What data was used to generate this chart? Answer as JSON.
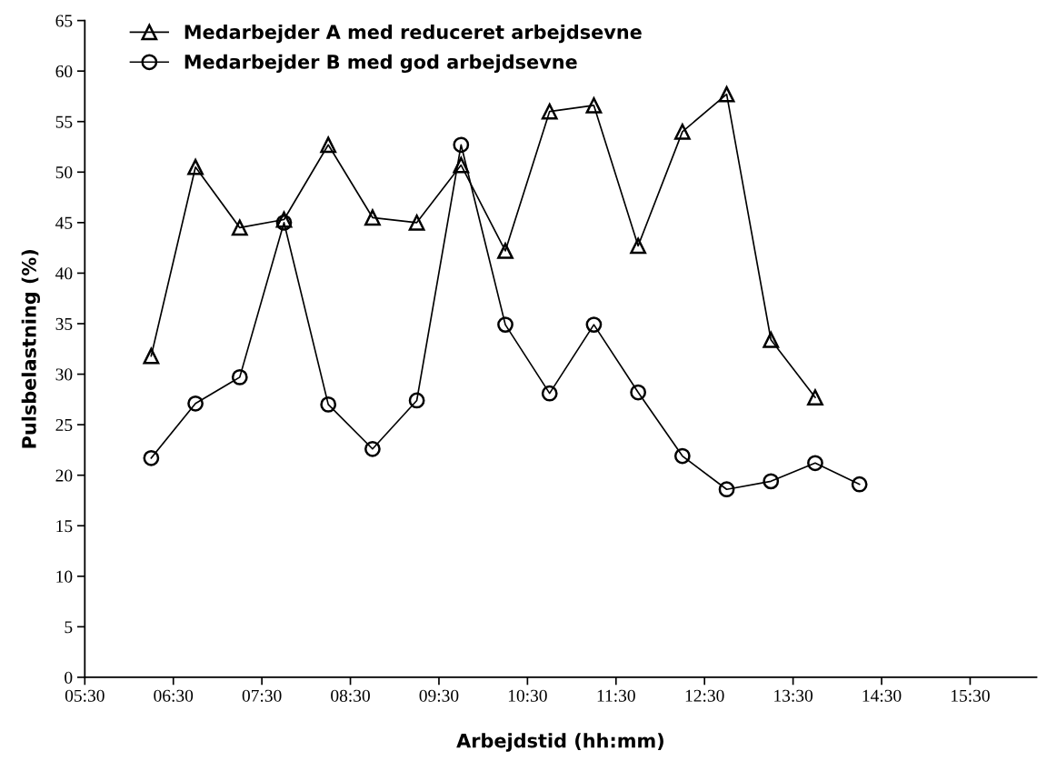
{
  "chart_data": {
    "type": "line",
    "xlabel": "Arbejdstid (hh:mm)",
    "ylabel": "Pulsbelastning (%)",
    "xlim": [
      5.5,
      16.25
    ],
    "xticks": [
      {
        "value": 5.5,
        "label": "05:30"
      },
      {
        "value": 6.5,
        "label": "06:30"
      },
      {
        "value": 7.5,
        "label": "07:30"
      },
      {
        "value": 8.5,
        "label": "08:30"
      },
      {
        "value": 9.5,
        "label": "09:30"
      },
      {
        "value": 10.5,
        "label": "10:30"
      },
      {
        "value": 11.5,
        "label": "11:30"
      },
      {
        "value": 12.5,
        "label": "12:30"
      },
      {
        "value": 13.5,
        "label": "13:30"
      },
      {
        "value": 14.5,
        "label": "14:30"
      },
      {
        "value": 15.5,
        "label": "15:30"
      }
    ],
    "ylim": [
      0,
      65
    ],
    "yticks": [
      0,
      5,
      10,
      15,
      20,
      25,
      30,
      35,
      40,
      45,
      50,
      55,
      60,
      65
    ],
    "grid": false,
    "legend": "top left",
    "line_style": "solid",
    "series": [
      {
        "name": "Medarbejder A med reduceret arbejdsevne",
        "color": "#000000",
        "marker": "triangle",
        "x": [
          6.25,
          6.75,
          7.25,
          7.75,
          8.25,
          8.75,
          9.25,
          9.75,
          10.25,
          10.75,
          11.25,
          11.75,
          12.25,
          12.75,
          13.25,
          13.75
        ],
        "values": [
          31.8,
          50.5,
          44.5,
          45.3,
          52.7,
          45.5,
          45.0,
          50.7,
          42.2,
          56.0,
          56.6,
          42.7,
          54.0,
          57.7,
          33.4,
          27.7
        ]
      },
      {
        "name": "Medarbejder B med god arbejdsevne",
        "color": "#000000",
        "marker": "circle",
        "x": [
          6.25,
          6.75,
          7.25,
          7.75,
          8.25,
          8.75,
          9.25,
          9.75,
          10.25,
          10.75,
          11.25,
          11.75,
          12.25,
          12.75,
          13.25,
          13.75,
          14.25
        ],
        "values": [
          21.7,
          27.1,
          29.7,
          45.0,
          27.0,
          22.6,
          27.4,
          52.7,
          34.9,
          28.1,
          34.9,
          28.2,
          21.9,
          18.6,
          19.4,
          21.2,
          19.1
        ]
      }
    ]
  }
}
